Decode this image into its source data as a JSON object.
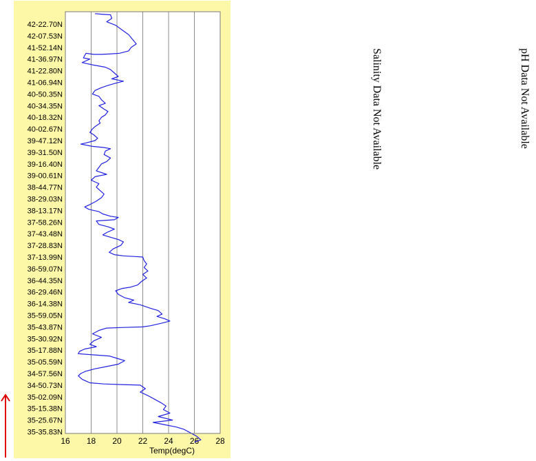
{
  "chart_data": {
    "type": "line",
    "xlabel": "Temp(degC)",
    "xlim": [
      16,
      28
    ],
    "xticks": [
      16,
      18,
      20,
      22,
      24,
      26,
      28
    ],
    "ylabel": "",
    "y_tick_labels": [
      "42-22.70N",
      "42-07.53N",
      "41-52.14N",
      "41-36.97N",
      "41-22.80N",
      "41-06.94N",
      "40-50.35N",
      "40-34.35N",
      "40-18.32N",
      "40-02.67N",
      "39-47.12N",
      "39-31.50N",
      "39-16.40N",
      "39-00.61N",
      "38-44.77N",
      "38-29.03N",
      "38-13.17N",
      "37-58.26N",
      "37-43.48N",
      "37-28.83N",
      "37-13.99N",
      "36-59.07N",
      "36-44.35N",
      "36-29.46N",
      "36-14.38N",
      "35-59.05N",
      "35-43.87N",
      "35-30.92N",
      "35-17.88N",
      "35-05.59N",
      "34-57.56N",
      "34-50.73N",
      "35-02.09N",
      "35-15.38N",
      "35-25.67N",
      "35-35.83N"
    ],
    "grid": "vertical",
    "series": [
      {
        "color": "#2020e0",
        "note_y": "position index along track, 0 = first tick label (top) to 35 = last tick label (bottom)",
        "points": [
          [
            18.3,
            -0.9
          ],
          [
            18.8,
            -0.85
          ],
          [
            19.5,
            -0.8
          ],
          [
            19.6,
            -0.5
          ],
          [
            19.2,
            -0.2
          ],
          [
            19.9,
            0.1
          ],
          [
            20.4,
            0.5
          ],
          [
            20.9,
            0.9
          ],
          [
            21.2,
            1.3
          ],
          [
            21.5,
            1.7
          ],
          [
            21.1,
            2.0
          ],
          [
            20.9,
            2.3
          ],
          [
            20.2,
            2.5
          ],
          [
            19.6,
            2.55
          ],
          [
            18.8,
            2.6
          ],
          [
            18.2,
            2.6
          ],
          [
            17.6,
            2.5
          ],
          [
            17.4,
            2.9
          ],
          [
            17.9,
            3.0
          ],
          [
            17.3,
            3.3
          ],
          [
            18.1,
            3.5
          ],
          [
            19.1,
            3.7
          ],
          [
            19.5,
            3.9
          ],
          [
            19.8,
            4.2
          ],
          [
            20.1,
            4.5
          ],
          [
            19.6,
            4.7
          ],
          [
            20.5,
            4.9
          ],
          [
            19.8,
            5.1
          ],
          [
            19.2,
            5.3
          ],
          [
            18.7,
            5.5
          ],
          [
            18.3,
            5.7
          ],
          [
            18.1,
            6.0
          ],
          [
            18.6,
            6.2
          ],
          [
            18.8,
            6.5
          ],
          [
            19.1,
            6.8
          ],
          [
            18.6,
            7.0
          ],
          [
            19.0,
            7.3
          ],
          [
            19.3,
            7.5
          ],
          [
            19.1,
            7.8
          ],
          [
            18.8,
            8.0
          ],
          [
            18.6,
            8.3
          ],
          [
            18.7,
            8.5
          ],
          [
            18.3,
            8.8
          ],
          [
            18.1,
            9.0
          ],
          [
            17.9,
            9.3
          ],
          [
            18.2,
            9.5
          ],
          [
            18.5,
            9.8
          ],
          [
            18.3,
            10.0
          ],
          [
            17.6,
            10.2
          ],
          [
            17.2,
            10.3
          ],
          [
            18.1,
            10.5
          ],
          [
            19.0,
            10.6
          ],
          [
            19.5,
            10.7
          ],
          [
            19.1,
            10.9
          ],
          [
            19.0,
            11.2
          ],
          [
            19.5,
            11.5
          ],
          [
            19.2,
            11.8
          ],
          [
            18.8,
            12.0
          ],
          [
            18.6,
            12.3
          ],
          [
            18.4,
            12.6
          ],
          [
            19.2,
            12.9
          ],
          [
            18.3,
            13.1
          ],
          [
            18.0,
            13.4
          ],
          [
            18.6,
            13.7
          ],
          [
            18.4,
            14.0
          ],
          [
            18.7,
            14.3
          ],
          [
            19.0,
            14.6
          ],
          [
            18.8,
            14.9
          ],
          [
            18.4,
            15.2
          ],
          [
            17.9,
            15.5
          ],
          [
            17.5,
            15.7
          ],
          [
            17.8,
            15.9
          ],
          [
            18.2,
            16.0
          ],
          [
            18.6,
            16.1
          ],
          [
            18.9,
            16.3
          ],
          [
            19.5,
            16.5
          ],
          [
            20.1,
            16.6
          ],
          [
            19.8,
            16.8
          ],
          [
            18.4,
            16.9
          ],
          [
            18.6,
            17.2
          ],
          [
            19.3,
            17.4
          ],
          [
            19.8,
            17.6
          ],
          [
            19.2,
            17.9
          ],
          [
            18.9,
            18.1
          ],
          [
            19.5,
            18.3
          ],
          [
            20.1,
            18.5
          ],
          [
            20.5,
            18.7
          ],
          [
            20.3,
            19.0
          ],
          [
            19.7,
            19.3
          ],
          [
            19.4,
            19.6
          ],
          [
            19.8,
            19.8
          ],
          [
            20.5,
            19.9
          ],
          [
            21.3,
            19.95
          ],
          [
            22.0,
            20.0
          ],
          [
            22.1,
            20.3
          ],
          [
            22.3,
            20.6
          ],
          [
            22.1,
            20.9
          ],
          [
            22.4,
            21.2
          ],
          [
            22.0,
            21.5
          ],
          [
            22.3,
            21.8
          ],
          [
            21.9,
            22.1
          ],
          [
            21.6,
            22.4
          ],
          [
            21.0,
            22.6
          ],
          [
            20.4,
            22.7
          ],
          [
            19.9,
            22.9
          ],
          [
            20.1,
            23.2
          ],
          [
            20.6,
            23.5
          ],
          [
            21.3,
            23.7
          ],
          [
            20.9,
            23.9
          ],
          [
            21.8,
            24.1
          ],
          [
            22.6,
            24.4
          ],
          [
            23.2,
            24.6
          ],
          [
            23.5,
            24.9
          ],
          [
            23.1,
            25.1
          ],
          [
            23.7,
            25.3
          ],
          [
            24.1,
            25.5
          ],
          [
            23.4,
            25.7
          ],
          [
            22.6,
            25.9
          ],
          [
            22.0,
            26.0
          ],
          [
            20.5,
            26.05
          ],
          [
            19.2,
            26.1
          ],
          [
            18.6,
            26.3
          ],
          [
            18.1,
            26.6
          ],
          [
            18.8,
            26.9
          ],
          [
            18.2,
            27.2
          ],
          [
            17.9,
            27.5
          ],
          [
            18.4,
            27.7
          ],
          [
            17.5,
            27.9
          ],
          [
            17.1,
            28.1
          ],
          [
            17.0,
            28.3
          ],
          [
            18.2,
            28.4
          ],
          [
            19.4,
            28.5
          ],
          [
            20.0,
            28.7
          ],
          [
            20.6,
            28.9
          ],
          [
            20.1,
            29.2
          ],
          [
            19.2,
            29.4
          ],
          [
            18.3,
            29.6
          ],
          [
            17.6,
            29.8
          ],
          [
            17.2,
            30.0
          ],
          [
            17.0,
            30.2
          ],
          [
            17.3,
            30.5
          ],
          [
            17.9,
            30.8
          ],
          [
            19.0,
            30.9
          ],
          [
            20.4,
            30.95
          ],
          [
            21.8,
            31.0
          ],
          [
            22.2,
            31.3
          ],
          [
            21.8,
            31.6
          ],
          [
            22.4,
            31.9
          ],
          [
            22.9,
            32.2
          ],
          [
            23.4,
            32.5
          ],
          [
            23.8,
            32.8
          ],
          [
            23.6,
            33.1
          ],
          [
            24.1,
            33.4
          ],
          [
            23.2,
            33.7
          ],
          [
            24.3,
            34.0
          ],
          [
            22.8,
            34.2
          ],
          [
            23.7,
            34.4
          ],
          [
            24.6,
            34.6
          ],
          [
            25.2,
            34.8
          ],
          [
            25.7,
            35.1
          ],
          [
            26.2,
            35.4
          ],
          [
            26.5,
            35.7
          ],
          [
            26.0,
            35.9
          ]
        ]
      }
    ]
  },
  "annotations": {
    "salinity": "Salinity Data Not Available",
    "ph": "pH Data Not Available"
  },
  "colors": {
    "panel": "#fdf7a8",
    "line": "#2020e0",
    "arrow": "#e00000",
    "grid": "#8c8c8c"
  }
}
